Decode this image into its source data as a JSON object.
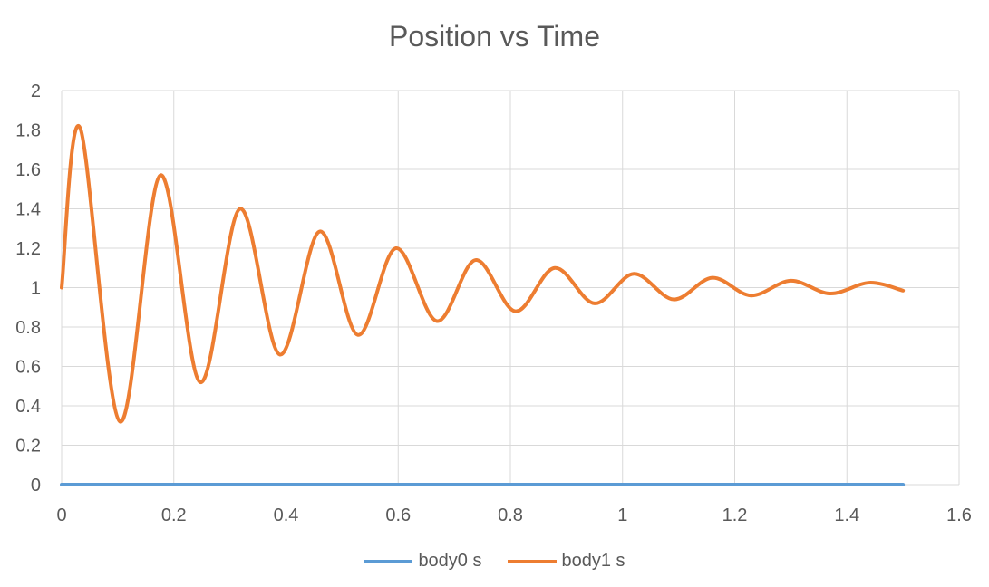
{
  "chart_data": {
    "type": "line",
    "title": "Position vs Time",
    "xlabel": "",
    "ylabel": "",
    "xlim": [
      0,
      1.6
    ],
    "ylim": [
      0,
      2
    ],
    "x_ticks": [
      "0",
      "0.2",
      "0.4",
      "0.6",
      "0.8",
      "1",
      "1.2",
      "1.4",
      "1.6"
    ],
    "y_ticks": [
      "0",
      "0.2",
      "0.4",
      "0.6",
      "0.8",
      "1",
      "1.2",
      "1.4",
      "1.6",
      "1.8",
      "2"
    ],
    "grid": true,
    "legend_position": "bottom",
    "series": [
      {
        "name": "body0 s",
        "color": "#5B9BD5",
        "points": [
          [
            0,
            0
          ],
          [
            1.5,
            0
          ]
        ]
      },
      {
        "name": "body1 s",
        "color": "#ED7D31",
        "points": [
          [
            0,
            1.0
          ],
          [
            0.033,
            1.81
          ],
          [
            0.104,
            0.32
          ],
          [
            0.176,
            1.57
          ],
          [
            0.247,
            0.52
          ],
          [
            0.318,
            1.4
          ],
          [
            0.389,
            0.66
          ],
          [
            0.46,
            1.285
          ],
          [
            0.528,
            0.76
          ],
          [
            0.596,
            1.2
          ],
          [
            0.669,
            0.83
          ],
          [
            0.738,
            1.14
          ],
          [
            0.809,
            0.88
          ],
          [
            0.879,
            1.1
          ],
          [
            0.95,
            0.92
          ],
          [
            1.02,
            1.07
          ],
          [
            1.091,
            0.94
          ],
          [
            1.16,
            1.05
          ],
          [
            1.229,
            0.96
          ],
          [
            1.3,
            1.035
          ],
          [
            1.37,
            0.97
          ],
          [
            1.44,
            1.025
          ],
          [
            1.5,
            0.985
          ]
        ]
      }
    ]
  }
}
